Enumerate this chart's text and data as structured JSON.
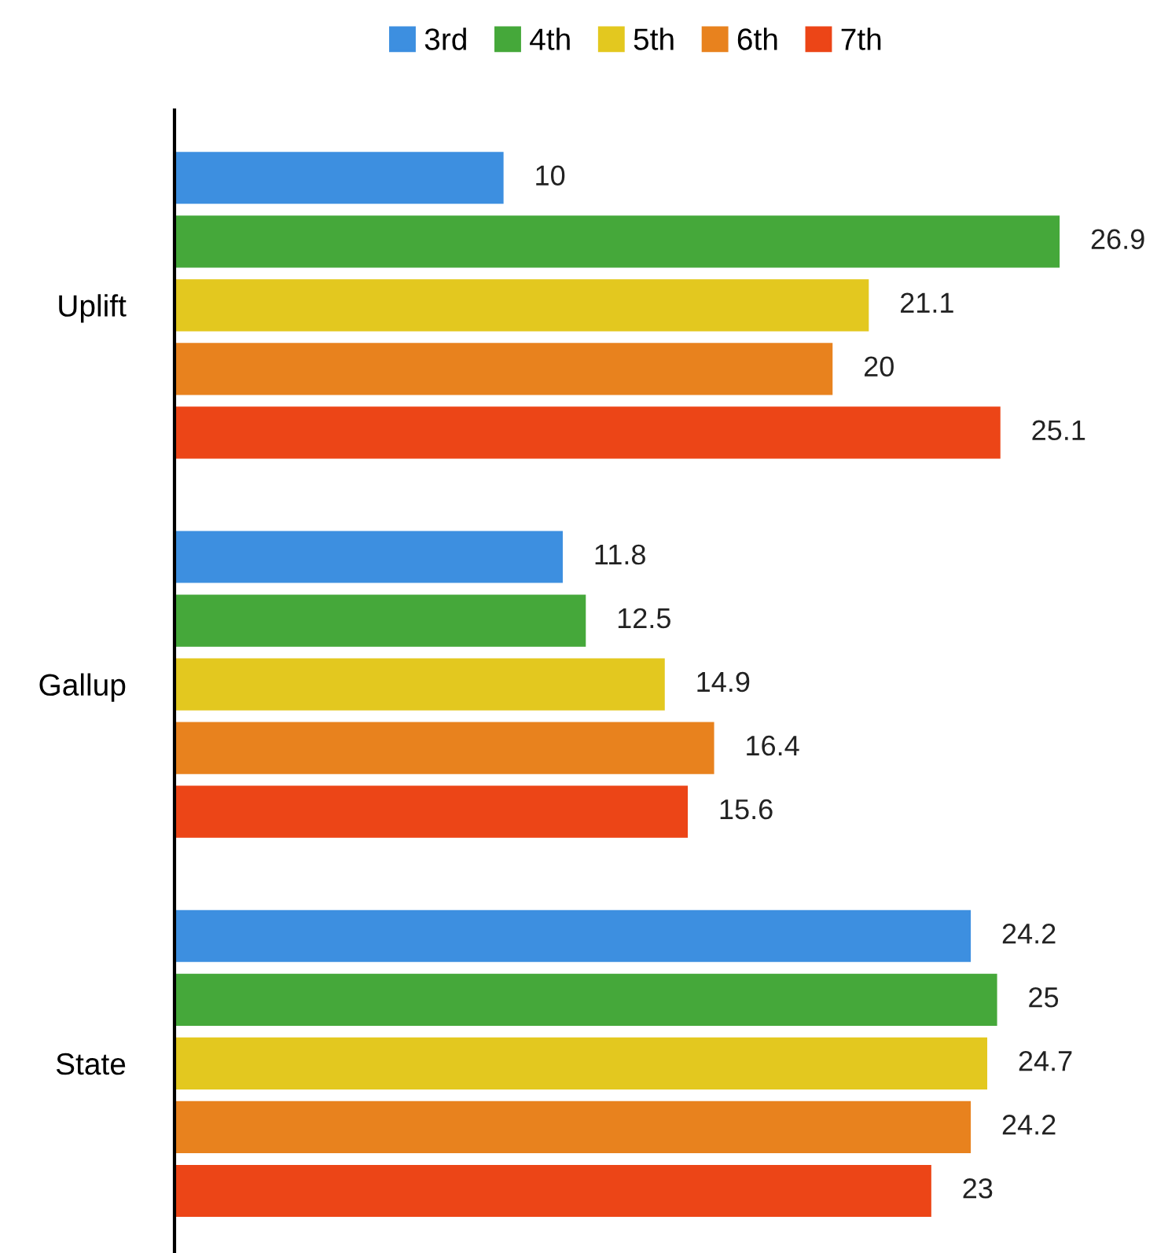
{
  "chart_data": {
    "type": "bar",
    "orientation": "horizontal",
    "categories": [
      "Uplift",
      "Gallup",
      "State"
    ],
    "series": [
      {
        "name": "3rd",
        "color": "#3d8fe0",
        "values": [
          10,
          11.8,
          24.2
        ]
      },
      {
        "name": "4th",
        "color": "#45a83a",
        "values": [
          26.9,
          12.5,
          25
        ]
      },
      {
        "name": "5th",
        "color": "#e3c81f",
        "values": [
          21.1,
          14.9,
          24.7
        ]
      },
      {
        "name": "6th",
        "color": "#e8821e",
        "values": [
          20,
          16.4,
          24.2
        ]
      },
      {
        "name": "7th",
        "color": "#ec4517",
        "values": [
          25.1,
          15.6,
          23
        ]
      }
    ],
    "data_labels": true,
    "legend": "top",
    "grid": false
  }
}
